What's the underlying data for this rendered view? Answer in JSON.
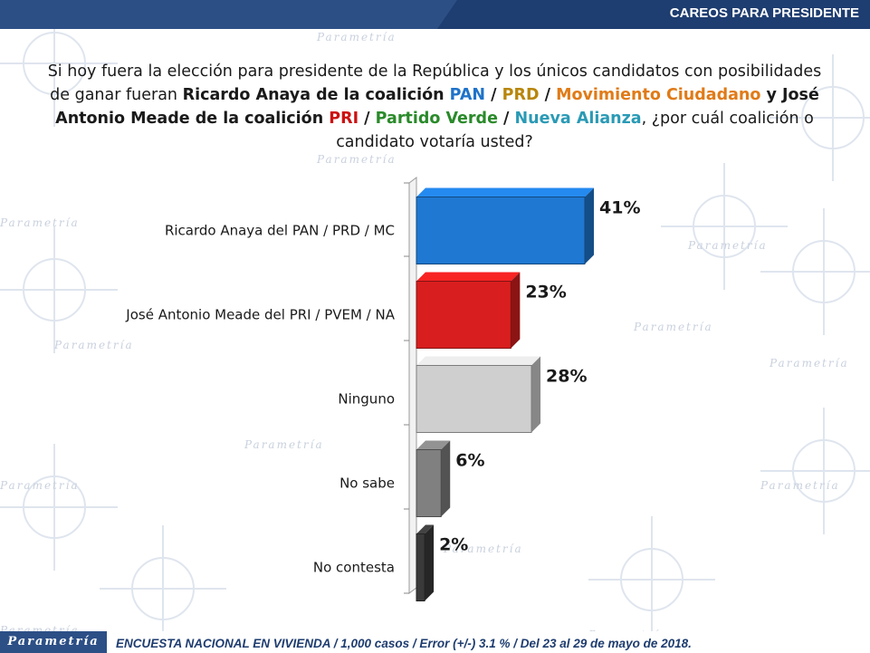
{
  "header": {
    "title": "CAREOS PARA PRESIDENTE"
  },
  "question": {
    "p1": "Si hoy fuera la elección para presidente de la República y los únicos candidatos con posibilidades de ganar fueran ",
    "b1": "Ricardo Anaya de la coalición ",
    "pan": "PAN",
    "s1": " / ",
    "prd": "PRD",
    "s2": " / ",
    "mc": "Movimiento Ciudadano",
    "b2": " y José Antonio Meade de la coalición ",
    "pri": "PRI",
    "s3": " / ",
    "pv": "Partido Verde",
    "s4": " / ",
    "na": "Nueva Alianza",
    "p2": ", ¿por cuál coalición o candidato votaría usted?"
  },
  "chart_data": {
    "type": "bar",
    "orientation": "horizontal",
    "categories": [
      "Ricardo Anaya del PAN / PRD / MC",
      "José Antonio Meade del PRI / PVEM / NA",
      "Ninguno",
      "No sabe",
      "No contesta"
    ],
    "values": [
      41,
      23,
      28,
      6,
      2
    ],
    "labels": [
      "41%",
      "23%",
      "28%",
      "6%",
      "2%"
    ],
    "colors": [
      "#1f78d1",
      "#d81e1e",
      "#cfcfcf",
      "#808080",
      "#3a3a3a"
    ],
    "xlim": [
      0,
      41
    ],
    "grid": false,
    "legend": "none"
  },
  "watermark": "Parametría",
  "footer": {
    "brand": "Parametría",
    "note": "ENCUESTA NACIONAL EN VIVIENDA / 1,000 casos / Error (+/-) 3.1 % / Del 23 al 29 de mayo de 2018."
  }
}
